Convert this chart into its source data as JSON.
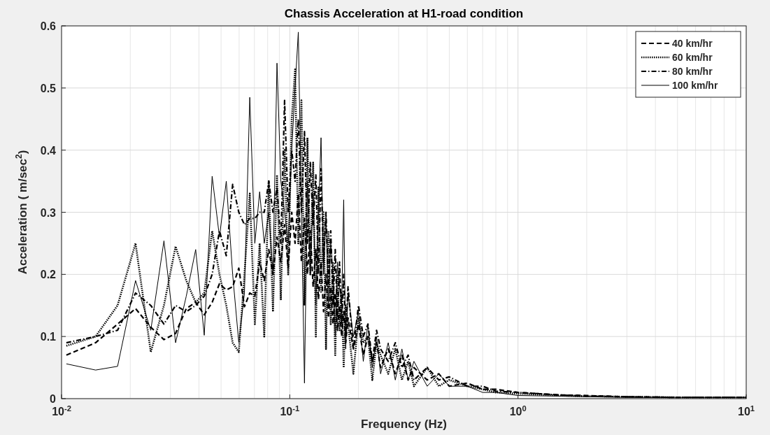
{
  "chart_data": {
    "type": "line",
    "title": "Chassis Acceleration at H1-road condition",
    "xlabel": "Frequency (Hz)",
    "ylabel": "Acceleration ( m/sec$^{2}$)",
    "log": "x",
    "grid": true,
    "legend": "top right",
    "xlim": [
      0.01,
      10
    ],
    "xticks": [
      {
        "value": 0.01,
        "label": "10$^{-2}$"
      },
      {
        "value": 0.1,
        "label": "10$^{-1}$"
      },
      {
        "value": 1,
        "label": "10$^{0}$"
      },
      {
        "value": 10,
        "label": "10$^{1}$"
      }
    ],
    "ylim": [
      0,
      0.6
    ],
    "yticks": [
      0,
      0.1,
      0.2,
      0.3,
      0.4,
      0.5,
      0.6
    ],
    "x": [
      0.0105,
      0.0141,
      0.0176,
      0.0211,
      0.0246,
      0.0281,
      0.0316,
      0.0352,
      0.0387,
      0.0422,
      0.0457,
      0.0492,
      0.0527,
      0.0562,
      0.0598,
      0.0633,
      0.0668,
      0.0703,
      0.0738,
      0.0773,
      0.0809,
      0.0844,
      0.0879,
      0.0914,
      0.0949,
      0.0984,
      0.102,
      0.1055,
      0.109,
      0.1125,
      0.116,
      0.1195,
      0.123,
      0.1266,
      0.1301,
      0.1336,
      0.1371,
      0.1406,
      0.1441,
      0.1477,
      0.1512,
      0.1547,
      0.1582,
      0.1617,
      0.1652,
      0.1688,
      0.1723,
      0.1758,
      0.18,
      0.19,
      0.2,
      0.21,
      0.22,
      0.23,
      0.24,
      0.25,
      0.27,
      0.29,
      0.31,
      0.33,
      0.35,
      0.4,
      0.45,
      0.5,
      0.6,
      0.7,
      0.8,
      1,
      1.5,
      2,
      3,
      5,
      7,
      10
    ],
    "series": [
      {
        "name": "40 km/hr",
        "color": "#000000",
        "line_style": "dashed",
        "values": [
          0.07,
          0.09,
          0.12,
          0.145,
          0.115,
          0.095,
          0.105,
          0.145,
          0.155,
          0.135,
          0.155,
          0.185,
          0.175,
          0.18,
          0.21,
          0.148,
          0.17,
          0.165,
          0.22,
          0.19,
          0.24,
          0.2,
          0.26,
          0.22,
          0.28,
          0.21,
          0.3,
          0.25,
          0.33,
          0.22,
          0.29,
          0.2,
          0.27,
          0.18,
          0.24,
          0.16,
          0.22,
          0.14,
          0.2,
          0.13,
          0.18,
          0.12,
          0.17,
          0.11,
          0.15,
          0.1,
          0.14,
          0.09,
          0.13,
          0.08,
          0.12,
          0.07,
          0.1,
          0.06,
          0.09,
          0.05,
          0.08,
          0.04,
          0.07,
          0.03,
          0.05,
          0.03,
          0.04,
          0.02,
          0.025,
          0.015,
          0.015,
          0.01,
          0.006,
          0.005,
          0.003,
          0.002,
          0.002,
          0.002
        ]
      },
      {
        "name": "60 km/hr",
        "color": "#000000",
        "line_style": "dotted",
        "values": [
          0.085,
          0.1,
          0.15,
          0.25,
          0.075,
          0.15,
          0.245,
          0.19,
          0.155,
          0.17,
          0.27,
          0.2,
          0.15,
          0.09,
          0.075,
          0.2,
          0.33,
          0.12,
          0.25,
          0.1,
          0.35,
          0.14,
          0.36,
          0.16,
          0.4,
          0.2,
          0.45,
          0.53,
          0.25,
          0.48,
          0.15,
          0.42,
          0.2,
          0.38,
          0.1,
          0.34,
          0.17,
          0.3,
          0.08,
          0.27,
          0.12,
          0.22,
          0.07,
          0.2,
          0.11,
          0.17,
          0.05,
          0.15,
          0.12,
          0.04,
          0.13,
          0.09,
          0.1,
          0.03,
          0.09,
          0.07,
          0.04,
          0.08,
          0.03,
          0.06,
          0.02,
          0.05,
          0.02,
          0.03,
          0.02,
          0.015,
          0.01,
          0.008,
          0.005,
          0.004,
          0.003,
          0.002,
          0.002,
          0.002
        ]
      },
      {
        "name": "80 km/hr",
        "color": "#000000",
        "line_style": "dashdot",
        "values": [
          0.09,
          0.1,
          0.11,
          0.17,
          0.15,
          0.12,
          0.15,
          0.14,
          0.15,
          0.165,
          0.2,
          0.27,
          0.23,
          0.345,
          0.3,
          0.28,
          0.29,
          0.29,
          0.3,
          0.3,
          0.35,
          0.3,
          0.34,
          0.25,
          0.48,
          0.3,
          0.4,
          0.35,
          0.45,
          0.3,
          0.43,
          0.25,
          0.38,
          0.28,
          0.36,
          0.2,
          0.37,
          0.22,
          0.3,
          0.18,
          0.27,
          0.15,
          0.24,
          0.13,
          0.22,
          0.12,
          0.2,
          0.1,
          0.18,
          0.08,
          0.15,
          0.1,
          0.12,
          0.06,
          0.11,
          0.08,
          0.06,
          0.09,
          0.05,
          0.07,
          0.03,
          0.05,
          0.03,
          0.035,
          0.02,
          0.02,
          0.012,
          0.01,
          0.006,
          0.004,
          0.003,
          0.002,
          0.002,
          0.002
        ]
      },
      {
        "name": "100 km/hr",
        "color": "#000000",
        "line_style": "solid",
        "values": [
          0.056,
          0.046,
          0.052,
          0.19,
          0.11,
          0.254,
          0.09,
          0.165,
          0.24,
          0.102,
          0.358,
          0.26,
          0.35,
          0.2,
          0.09,
          0.17,
          0.485,
          0.25,
          0.333,
          0.25,
          0.3,
          0.2,
          0.54,
          0.35,
          0.3,
          0.25,
          0.4,
          0.5,
          0.59,
          0.3,
          0.025,
          0.35,
          0.2,
          0.33,
          0.15,
          0.3,
          0.42,
          0.2,
          0.3,
          0.15,
          0.25,
          0.2,
          0.1,
          0.22,
          0.18,
          0.15,
          0.32,
          0.08,
          0.17,
          0.1,
          0.14,
          0.06,
          0.12,
          0.05,
          0.1,
          0.04,
          0.09,
          0.03,
          0.08,
          0.03,
          0.06,
          0.02,
          0.04,
          0.02,
          0.02,
          0.01,
          0.01,
          0.005,
          0.004,
          0.003,
          0.002,
          0.002,
          0.002,
          0.002
        ]
      }
    ]
  }
}
